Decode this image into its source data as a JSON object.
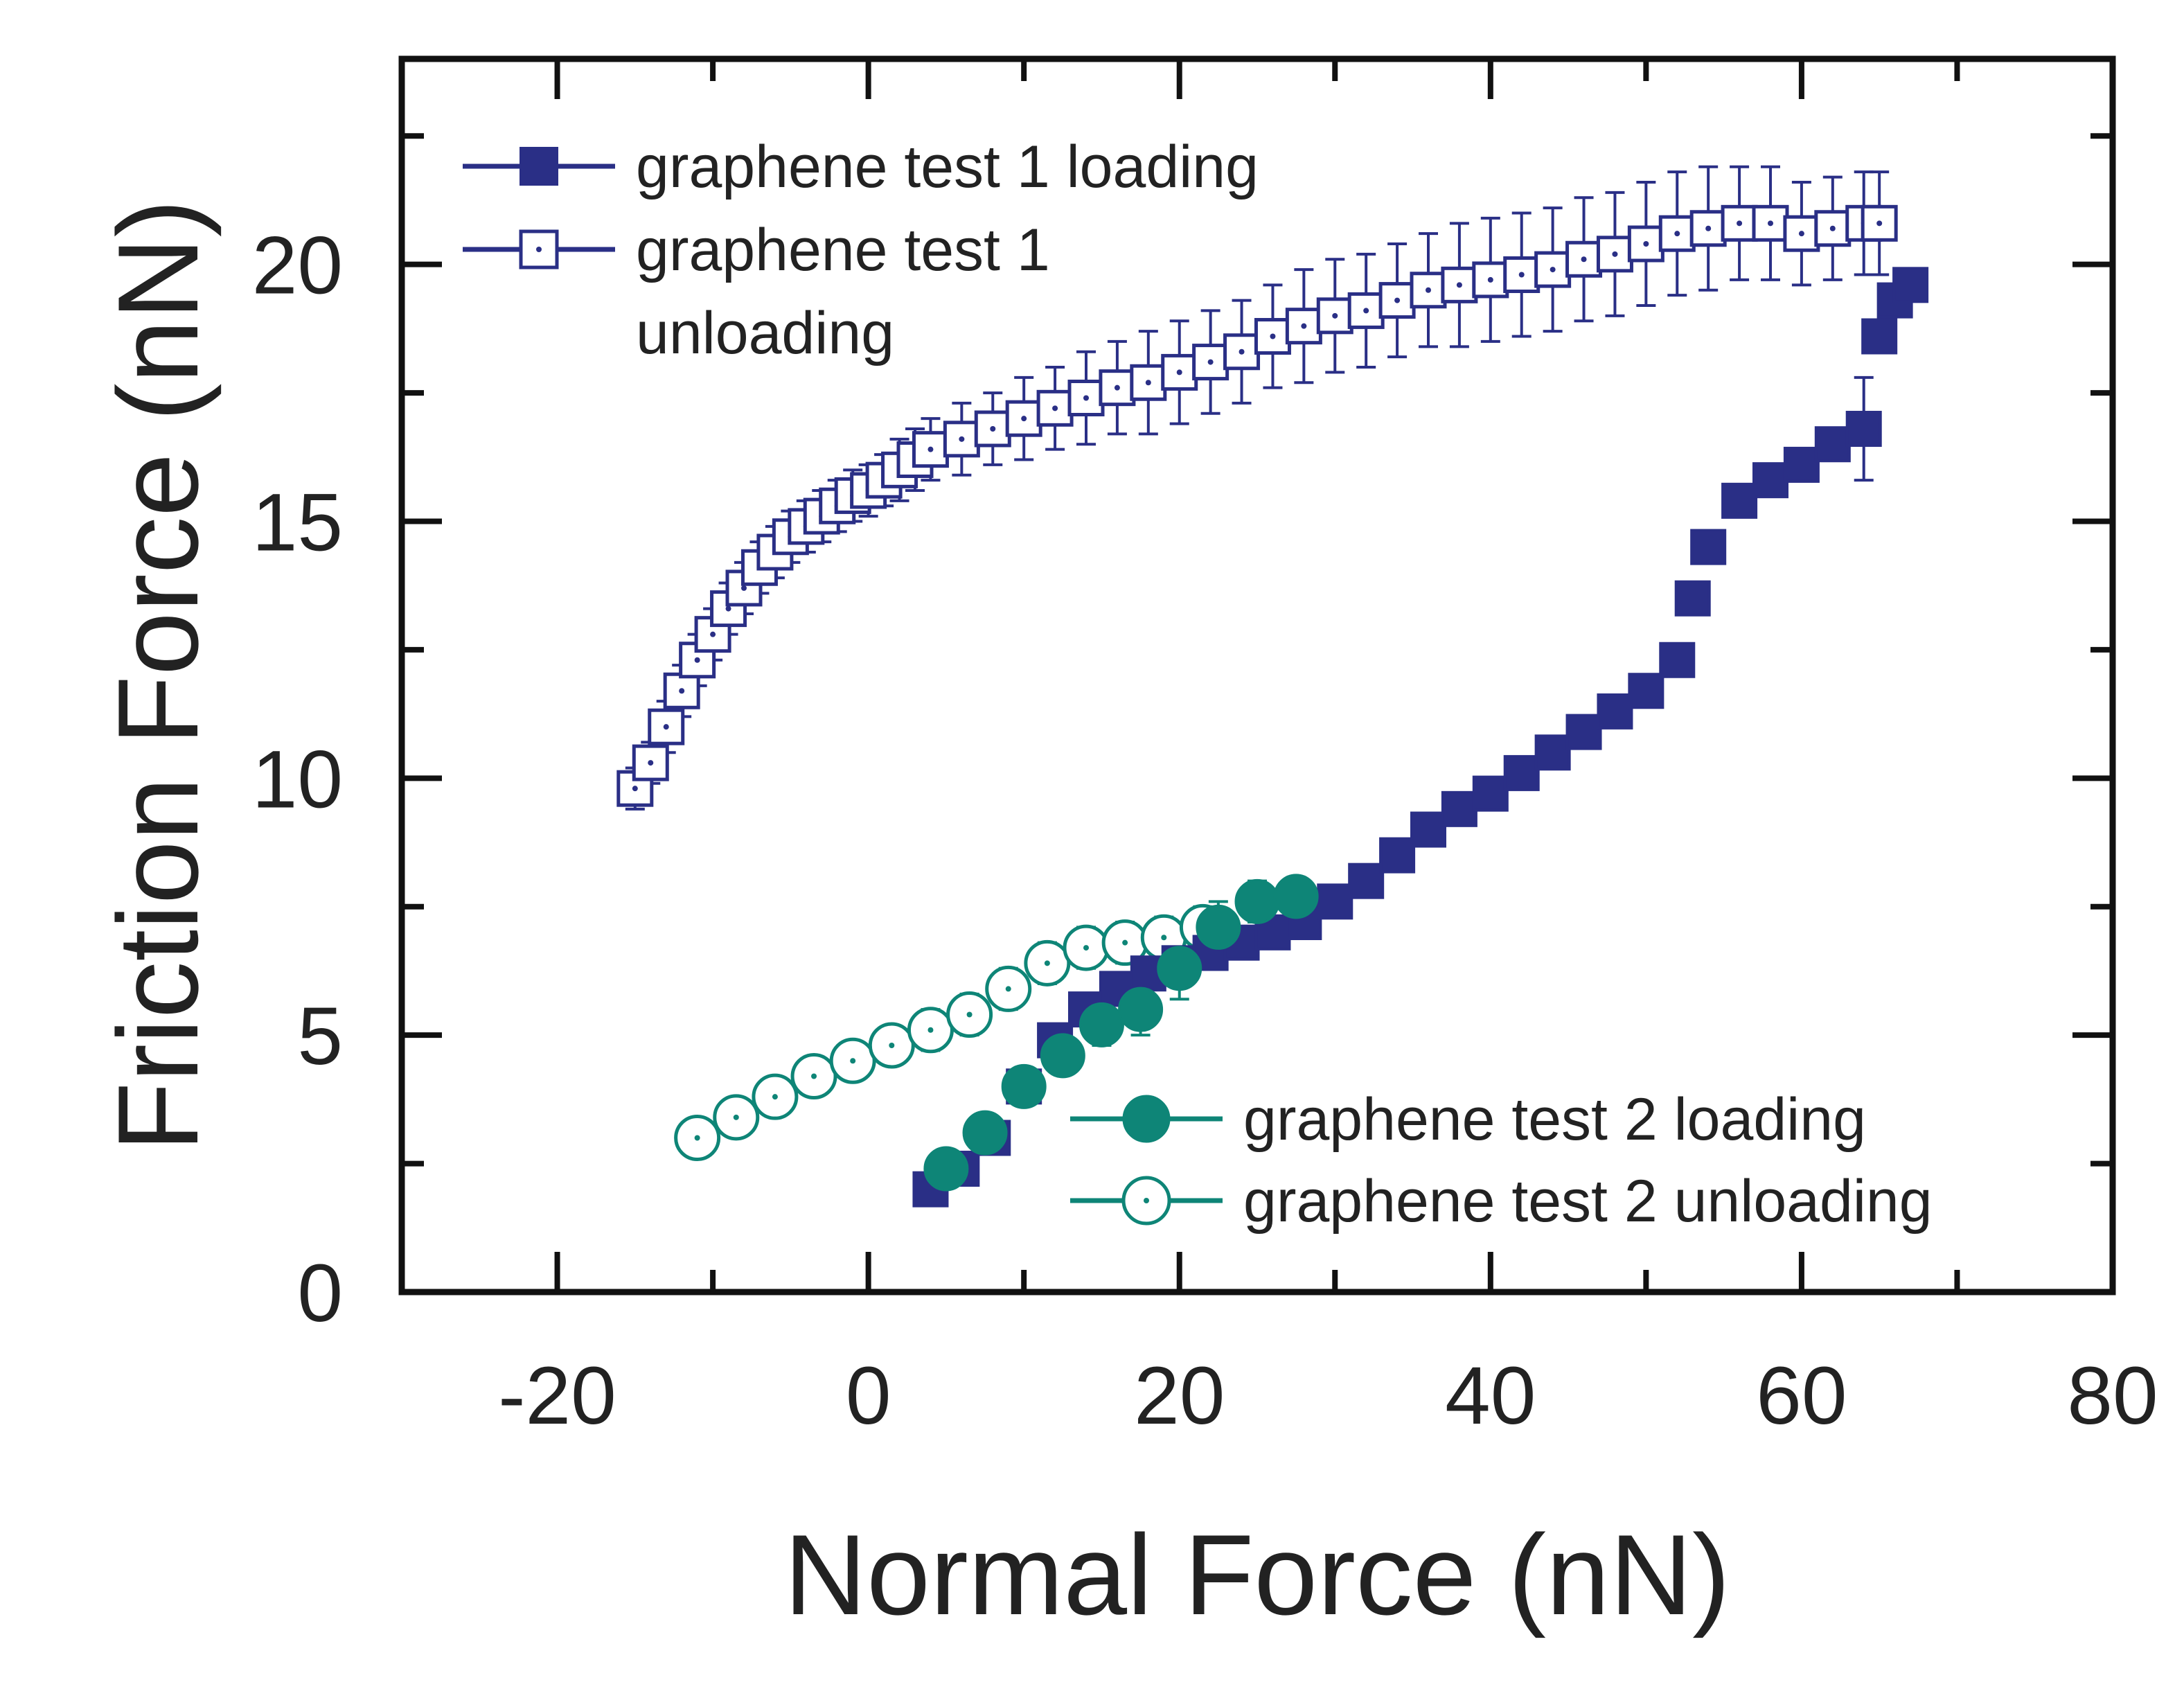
{
  "chart_data": {
    "type": "scatter",
    "xlabel": "Normal Force (nN)",
    "ylabel": "Friction Force (nN)",
    "xlim": [
      -30,
      80
    ],
    "ylim": [
      0,
      24
    ],
    "x_ticks": [
      -20,
      0,
      20,
      40,
      60,
      80
    ],
    "y_ticks": [
      0,
      5,
      10,
      15,
      20
    ],
    "grid": false,
    "colors": {
      "navy": "#2a2f86",
      "teal": "#0e8577"
    },
    "series": [
      {
        "name": "graphene test 1 loading",
        "marker": "filled-square",
        "color": "#2a2f86",
        "x": [
          4,
          6,
          8,
          10,
          12,
          14,
          16,
          18,
          20,
          22,
          24,
          26,
          28,
          30,
          32,
          34,
          36,
          38,
          40,
          42,
          44,
          46,
          48,
          50,
          52,
          53,
          54,
          56,
          58,
          60,
          62,
          64,
          65,
          66,
          67
        ],
        "y": [
          2.0,
          2.4,
          3.0,
          4.0,
          4.9,
          5.5,
          5.9,
          6.2,
          6.4,
          6.6,
          6.8,
          7.0,
          7.2,
          7.6,
          8.0,
          8.5,
          9.0,
          9.4,
          9.7,
          10.1,
          10.5,
          10.9,
          11.3,
          11.7,
          12.3,
          13.5,
          14.5,
          15.4,
          15.8,
          16.1,
          16.5,
          16.8,
          18.6,
          19.3,
          19.6
        ],
        "yerr": [
          0.1,
          0.1,
          0.1,
          0.1,
          0.15,
          0.2,
          0.2,
          0.2,
          0.2,
          0.2,
          0.2,
          0.2,
          0.2,
          0.2,
          0.2,
          0.2,
          0.2,
          0.2,
          0.2,
          0.2,
          0.2,
          0.2,
          0.2,
          0.2,
          0.3,
          0.3,
          0.3,
          0.3,
          0.3,
          0.3,
          0.3,
          1.0,
          0.3,
          0.3,
          0.3
        ]
      },
      {
        "name": "graphene test 1 unloading",
        "marker": "open-square",
        "color": "#2a2f86",
        "x": [
          -15,
          -14,
          -13,
          -12,
          -11,
          -10,
          -9,
          -8,
          -7,
          -6,
          -5,
          -4,
          -3,
          -2,
          -1,
          0,
          1,
          2,
          3,
          4,
          6,
          8,
          10,
          12,
          14,
          16,
          18,
          20,
          22,
          24,
          26,
          28,
          30,
          32,
          34,
          36,
          38,
          40,
          42,
          44,
          46,
          48,
          50,
          52,
          54,
          56,
          58,
          60,
          62,
          64,
          65
        ],
        "y": [
          9.8,
          10.3,
          11.0,
          11.7,
          12.3,
          12.8,
          13.3,
          13.7,
          14.1,
          14.4,
          14.7,
          14.9,
          15.1,
          15.3,
          15.5,
          15.6,
          15.8,
          16.0,
          16.2,
          16.4,
          16.6,
          16.8,
          17.0,
          17.2,
          17.4,
          17.6,
          17.7,
          17.9,
          18.1,
          18.3,
          18.6,
          18.8,
          19.0,
          19.1,
          19.3,
          19.5,
          19.6,
          19.7,
          19.8,
          19.9,
          20.1,
          20.2,
          20.4,
          20.6,
          20.7,
          20.8,
          20.8,
          20.6,
          20.7,
          20.8,
          20.8
        ],
        "yerr": [
          0.4,
          0.4,
          0.5,
          0.5,
          0.5,
          0.5,
          0.5,
          0.5,
          0.5,
          0.5,
          0.5,
          0.5,
          0.5,
          0.5,
          0.5,
          0.5,
          0.5,
          0.6,
          0.6,
          0.6,
          0.7,
          0.7,
          0.8,
          0.8,
          0.9,
          0.9,
          1.0,
          1.0,
          1.0,
          1.0,
          1.0,
          1.1,
          1.1,
          1.1,
          1.1,
          1.1,
          1.2,
          1.2,
          1.2,
          1.2,
          1.2,
          1.2,
          1.2,
          1.2,
          1.2,
          1.1,
          1.1,
          1.0,
          1.0,
          1.0,
          1.0
        ]
      },
      {
        "name": "graphene test 2 loading",
        "marker": "filled-circle",
        "color": "#0e8577",
        "x": [
          5,
          7.5,
          10,
          12.5,
          15,
          17.5,
          20,
          22.5,
          25,
          27.5
        ],
        "y": [
          2.4,
          3.1,
          4.0,
          4.6,
          5.2,
          5.5,
          6.3,
          7.1,
          7.6,
          7.7
        ],
        "yerr": [
          0.2,
          0.3,
          0.3,
          0.3,
          0.4,
          0.5,
          0.6,
          0.5,
          0.4,
          0.3
        ]
      },
      {
        "name": "graphene test 2 unloading",
        "marker": "open-circle",
        "color": "#0e8577",
        "x": [
          -11,
          -8.5,
          -6,
          -3.5,
          -1,
          1.5,
          4,
          6.5,
          9,
          11.5,
          14,
          16.5,
          19,
          21.5
        ],
        "y": [
          3.0,
          3.4,
          3.8,
          4.2,
          4.5,
          4.8,
          5.1,
          5.4,
          5.9,
          6.4,
          6.7,
          6.8,
          6.9,
          7.1
        ],
        "yerr": [
          0.3,
          0.3,
          0.3,
          0.3,
          0.3,
          0.3,
          0.4,
          0.4,
          0.4,
          0.4,
          0.4,
          0.4,
          0.4,
          0.4
        ]
      }
    ],
    "legends": [
      {
        "placement": "top-left",
        "lines": [
          {
            "series": 0,
            "text": "graphene test 1 loading"
          },
          {
            "series": 1,
            "text": "graphene test 1"
          },
          {
            "series": null,
            "text": "unloading"
          }
        ]
      },
      {
        "placement": "bottom-right",
        "lines": [
          {
            "series": 2,
            "text": "graphene test 2 loading"
          },
          {
            "series": 3,
            "text": "graphene test 2 unloading"
          }
        ]
      }
    ]
  }
}
